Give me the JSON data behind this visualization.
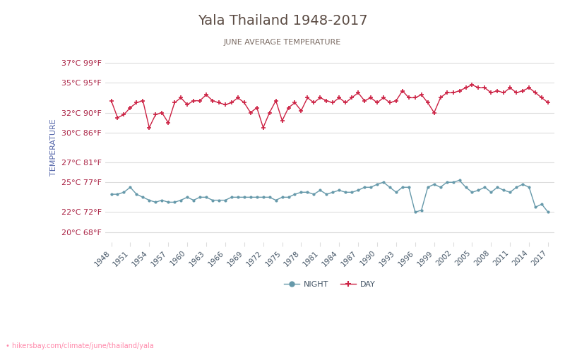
{
  "title": "Yala Thailand 1948-2017",
  "subtitle": "JUNE AVERAGE TEMPERATURE",
  "ylabel": "TEMPERATURE",
  "url": "• hikersbay.com/climate/june/thailand/yala",
  "bg_color": "#ffffff",
  "grid_color": "#dddddd",
  "title_color": "#5a4a42",
  "subtitle_color": "#7a6a62",
  "ylabel_color": "#5566aa",
  "tick_color": "#aa2244",
  "xticklabel_color": "#445566",
  "day_color": "#cc2244",
  "night_color": "#6699aa",
  "url_color": "#ff88aa",
  "ylim_min": 19,
  "ylim_max": 38,
  "yticks_celsius": [
    20,
    22,
    25,
    27,
    30,
    32,
    35,
    37
  ],
  "yticks_fahrenheit": [
    68,
    72,
    77,
    81,
    86,
    90,
    95,
    99
  ],
  "years": [
    1948,
    1949,
    1950,
    1951,
    1952,
    1953,
    1954,
    1955,
    1956,
    1957,
    1958,
    1959,
    1960,
    1961,
    1962,
    1963,
    1964,
    1965,
    1966,
    1967,
    1968,
    1969,
    1970,
    1971,
    1972,
    1973,
    1974,
    1975,
    1976,
    1977,
    1978,
    1979,
    1980,
    1981,
    1982,
    1983,
    1984,
    1985,
    1986,
    1987,
    1988,
    1989,
    1990,
    1991,
    1992,
    1993,
    1994,
    1995,
    1996,
    1997,
    1998,
    1999,
    2000,
    2001,
    2002,
    2003,
    2004,
    2005,
    2006,
    2007,
    2008,
    2009,
    2010,
    2011,
    2012,
    2013,
    2014,
    2015,
    2016,
    2017
  ],
  "day_temps": [
    33.2,
    31.5,
    31.8,
    32.5,
    33.0,
    33.2,
    30.5,
    31.8,
    32.0,
    31.0,
    33.0,
    33.5,
    32.8,
    33.2,
    33.2,
    33.8,
    33.2,
    33.0,
    32.8,
    33.0,
    33.5,
    33.0,
    32.0,
    32.5,
    30.5,
    32.0,
    33.2,
    31.2,
    32.5,
    33.0,
    32.2,
    33.5,
    33.0,
    33.5,
    33.2,
    33.0,
    33.5,
    33.0,
    33.5,
    34.0,
    33.2,
    33.5,
    33.0,
    33.5,
    33.0,
    33.2,
    34.2,
    33.5,
    33.5,
    33.8,
    33.0,
    32.0,
    33.5,
    34.0,
    34.0,
    34.2,
    34.5,
    34.8,
    34.5,
    34.5,
    34.0,
    34.2,
    34.0,
    34.5,
    34.0,
    34.2,
    34.5,
    34.0,
    33.5,
    33.0
  ],
  "night_temps": [
    23.8,
    23.8,
    24.0,
    24.5,
    23.8,
    23.5,
    23.2,
    23.0,
    23.2,
    23.0,
    23.0,
    23.2,
    23.5,
    23.2,
    23.5,
    23.5,
    23.2,
    23.2,
    23.2,
    23.5,
    23.5,
    23.5,
    23.5,
    23.5,
    23.5,
    23.5,
    23.2,
    23.5,
    23.5,
    23.8,
    24.0,
    24.0,
    23.8,
    24.2,
    23.8,
    24.0,
    24.2,
    24.0,
    24.0,
    24.2,
    24.5,
    24.5,
    24.8,
    25.0,
    24.5,
    24.0,
    24.5,
    24.5,
    22.0,
    22.2,
    24.5,
    24.8,
    24.5,
    25.0,
    25.0,
    25.2,
    24.5,
    24.0,
    24.2,
    24.5,
    24.0,
    24.5,
    24.2,
    24.0,
    24.5,
    24.8,
    24.5,
    22.5,
    22.8,
    22.0
  ]
}
